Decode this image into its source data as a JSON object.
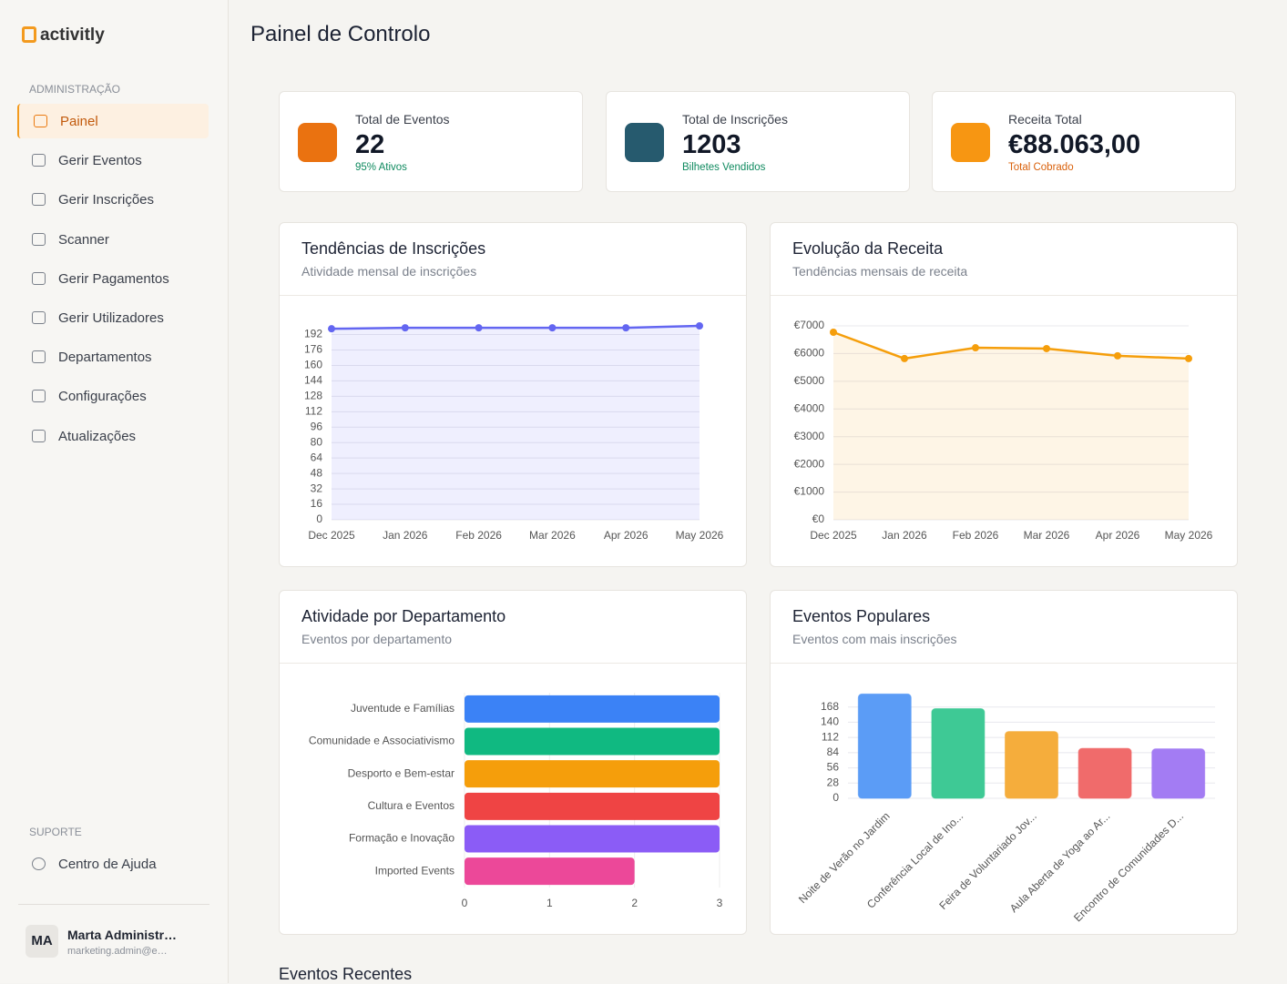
{
  "sidebar": {
    "logo": "activitly",
    "section_admin": "ADMINISTRAÇÃO",
    "nav": [
      "Painel",
      "Gerir Eventos",
      "Gerir Inscrições",
      "Scanner",
      "Gerir Pagamentos",
      "Gerir Utilizadores",
      "Departamentos",
      "Configurações",
      "Atualizações"
    ],
    "section_support": "SUPORTE",
    "help": "Centro de Ajuda",
    "user": {
      "initials": "MA",
      "name": "Marta Administr…",
      "email": "marketing.admin@e…"
    }
  },
  "header": {
    "title": "Painel de Controlo"
  },
  "stats": [
    {
      "label": "Total de Eventos",
      "value": "22",
      "note": "95% Ativos"
    },
    {
      "label": "Total de Inscrições",
      "value": "1203",
      "note": "Bilhetes Vendidos"
    },
    {
      "label": "Receita Total",
      "value": "€88.063,00",
      "note": "Total Cobrado"
    }
  ],
  "chart_data": [
    {
      "type": "line",
      "title": "Tendências de Inscrições",
      "subtitle": "Atividade mensal de inscrições",
      "categories": [
        "Dec 2025",
        "Jan 2026",
        "Feb 2026",
        "Mar 2026",
        "Apr 2026",
        "May 2026"
      ],
      "values": [
        198,
        199,
        199,
        199,
        199,
        201
      ],
      "color": "#6366f1",
      "ylim": [
        0,
        201
      ],
      "yticks": [
        0,
        16,
        32,
        48,
        64,
        80,
        96,
        112,
        128,
        144,
        160,
        176,
        192
      ],
      "grid": true
    },
    {
      "type": "line",
      "title": "Evolução da Receita",
      "subtitle": "Tendências mensais de receita",
      "categories": [
        "Dec 2025",
        "Jan 2026",
        "Feb 2026",
        "Mar 2026",
        "Apr 2026",
        "May 2026"
      ],
      "values": [
        6770,
        5820,
        6210,
        6180,
        5920,
        5820
      ],
      "color": "#f59e0b",
      "ylim": [
        0,
        7000
      ],
      "yticks": [
        {
          "value": 0,
          "label": "€0"
        },
        {
          "value": 1000,
          "label": "€1000"
        },
        {
          "value": 2000,
          "label": "€2000"
        },
        {
          "value": 3000,
          "label": "€3000"
        },
        {
          "value": 4000,
          "label": "€4000"
        },
        {
          "value": 5000,
          "label": "€5000"
        },
        {
          "value": 6000,
          "label": "€6000"
        },
        {
          "value": 7000,
          "label": "€7000"
        }
      ],
      "grid": true
    },
    {
      "type": "hbar",
      "title": "Atividade por Departamento",
      "subtitle": "Eventos por departamento",
      "categories": [
        "Juventude e Famílias",
        "Comunidade e Associativismo",
        "Desporto e Bem-estar",
        "Cultura e Eventos",
        "Formação e Inovação",
        "Imported Events"
      ],
      "values": [
        3,
        3,
        3,
        3,
        3,
        2
      ],
      "colors": [
        "#3b82f6",
        "#10b981",
        "#f59e0b",
        "#ef4444",
        "#8b5cf6",
        "#ec4899"
      ],
      "xlim": [
        0,
        3
      ],
      "xticks": [
        0,
        1,
        2,
        3
      ],
      "grid": true
    },
    {
      "type": "bar",
      "title": "Eventos Populares",
      "subtitle": "Eventos com mais inscrições",
      "categories": [
        "Noite de Verão no Jardim",
        "Conferência Local de Ino...",
        "Feira de Voluntariado Jov...",
        "Aula Aberta de Yoga ao Ar...",
        "Encontro de Comunidades D..."
      ],
      "values": [
        192,
        165,
        123,
        92,
        91
      ],
      "colors": [
        "#5b9cf6",
        "#3ec995",
        "#f5ad3c",
        "#f06b6b",
        "#a37cf3"
      ],
      "ylim": [
        0,
        196
      ],
      "yticks": [
        0,
        28,
        56,
        84,
        112,
        140,
        168
      ],
      "grid": true
    }
  ],
  "recent": {
    "title": "Eventos Recentes"
  }
}
